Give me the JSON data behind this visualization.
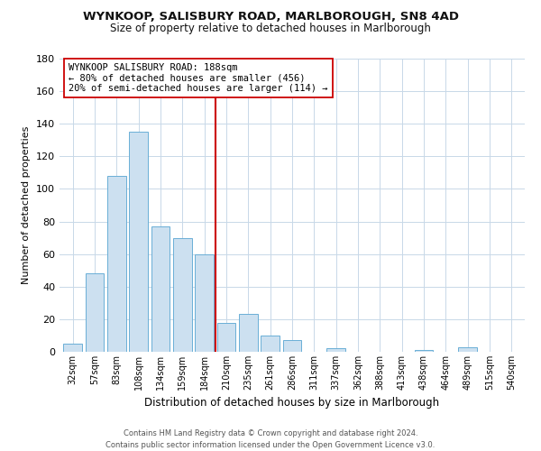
{
  "title": "WYNKOOP, SALISBURY ROAD, MARLBOROUGH, SN8 4AD",
  "subtitle": "Size of property relative to detached houses in Marlborough",
  "xlabel": "Distribution of detached houses by size in Marlborough",
  "ylabel": "Number of detached properties",
  "bar_labels": [
    "32sqm",
    "57sqm",
    "83sqm",
    "108sqm",
    "134sqm",
    "159sqm",
    "184sqm",
    "210sqm",
    "235sqm",
    "261sqm",
    "286sqm",
    "311sqm",
    "337sqm",
    "362sqm",
    "388sqm",
    "413sqm",
    "438sqm",
    "464sqm",
    "489sqm",
    "515sqm",
    "540sqm"
  ],
  "bar_values": [
    5,
    48,
    108,
    135,
    77,
    70,
    60,
    18,
    23,
    10,
    7,
    0,
    2,
    0,
    0,
    0,
    1,
    0,
    3,
    0,
    0
  ],
  "bar_color": "#cce0f0",
  "bar_edge_color": "#6aaed6",
  "vline_x": 6.5,
  "vline_color": "#cc0000",
  "annotation_lines": [
    "WYNKOOP SALISBURY ROAD: 188sqm",
    "← 80% of detached houses are smaller (456)",
    "20% of semi-detached houses are larger (114) →"
  ],
  "ylim": [
    0,
    180
  ],
  "yticks": [
    0,
    20,
    40,
    60,
    80,
    100,
    120,
    140,
    160,
    180
  ],
  "footer_line1": "Contains HM Land Registry data © Crown copyright and database right 2024.",
  "footer_line2": "Contains public sector information licensed under the Open Government Licence v3.0.",
  "bg_color": "#ffffff",
  "grid_color": "#c8d8e8"
}
